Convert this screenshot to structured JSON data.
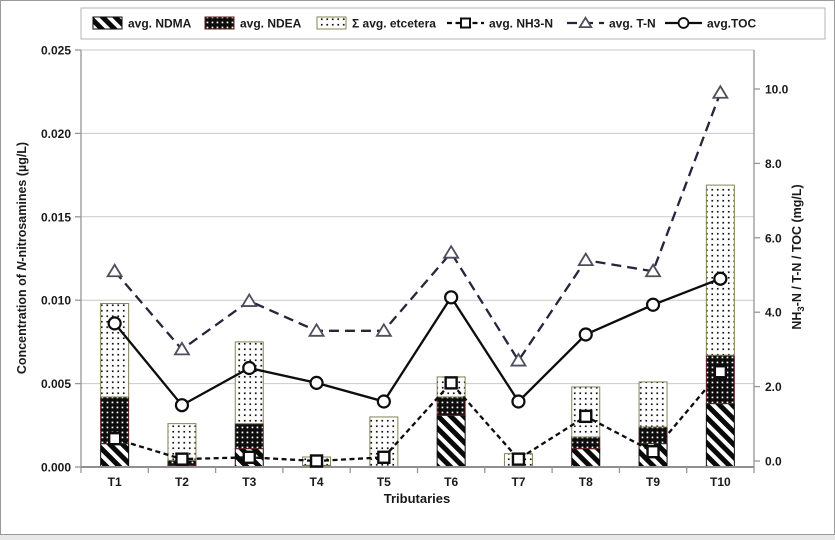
{
  "chart_data": {
    "type": "combo-stacked-bar-line",
    "description": "Stacked bars of N-nitrosamine species on left axis with dashed/solid line series on right axis",
    "categories": [
      "T1",
      "T2",
      "T3",
      "T4",
      "T5",
      "T6",
      "T7",
      "T8",
      "T9",
      "T10"
    ],
    "bar_series": [
      {
        "name": "avg. NDMA",
        "axis": "left",
        "pattern": "diagonal-stripes",
        "values": [
          0.0014,
          0.0001,
          0.0011,
          0.0,
          0.0,
          0.0031,
          0.0,
          0.0011,
          0.0014,
          0.0038
        ]
      },
      {
        "name": "avg. NDEA",
        "axis": "left",
        "pattern": "black-speckle",
        "values": [
          0.0028,
          0.0003,
          0.0015,
          0.0001,
          0.0,
          0.0011,
          0.0,
          0.0007,
          0.001,
          0.0029
        ]
      },
      {
        "name": "Σ avg. etcetera",
        "axis": "left",
        "pattern": "dotted",
        "values": [
          0.0056,
          0.0022,
          0.0049,
          0.0005,
          0.003,
          0.0012,
          0.0008,
          0.003,
          0.0027,
          0.0102
        ]
      }
    ],
    "bar_totals": [
      0.0098,
      0.0026,
      0.0075,
      0.0006,
      0.003,
      0.0054,
      0.0008,
      0.0048,
      0.0051,
      0.0169
    ],
    "line_series": [
      {
        "name": "avg. NH3-N",
        "axis": "right",
        "marker": "square",
        "dash": "short",
        "values": [
          0.6,
          0.05,
          0.1,
          0.0,
          0.1,
          2.1,
          0.05,
          1.2,
          0.25,
          2.4
        ]
      },
      {
        "name": "avg. T-N",
        "axis": "right",
        "marker": "triangle",
        "dash": "long",
        "values": [
          5.1,
          3.0,
          4.3,
          3.5,
          3.5,
          5.6,
          2.7,
          5.4,
          5.1,
          9.9
        ]
      },
      {
        "name": "avg.TOC",
        "axis": "right",
        "marker": "circle",
        "dash": "solid",
        "values": [
          3.7,
          1.5,
          2.5,
          2.1,
          1.6,
          4.4,
          1.6,
          3.4,
          4.2,
          4.9
        ]
      }
    ],
    "left_axis": {
      "title_pre": "Concentration of ",
      "title_italic": "N",
      "title_post": "-nitrosamines (µg/L)",
      "tick_labels": [
        "0.000",
        "0.005",
        "0.010",
        "0.015",
        "0.020",
        "0.025"
      ],
      "range": [
        0,
        0.025
      ],
      "grid": true
    },
    "right_axis": {
      "title_pre": "NH",
      "title_sub": "3",
      "title_post": "-N / T-N / TOC (mg/L)",
      "tick_labels": [
        "0.0",
        "2.0",
        "4.0",
        "6.0",
        "8.0",
        "10.0"
      ],
      "range": [
        0,
        10
      ]
    },
    "x_axis": {
      "title": "Tributaries"
    },
    "legend": {
      "position": "top"
    },
    "colors": {
      "line_black": "#0d0d0d",
      "tn_line": "#26263a",
      "triangle_stroke": "#4e4e5c",
      "grid": "#c9c9c9",
      "axis": "#969696",
      "text": "#1a1a1a",
      "etc_border": "#84845a",
      "ndea_border": "#5a2020",
      "ndma_border": "#0a0a0a",
      "legend_border": "#b4b4b4"
    }
  }
}
